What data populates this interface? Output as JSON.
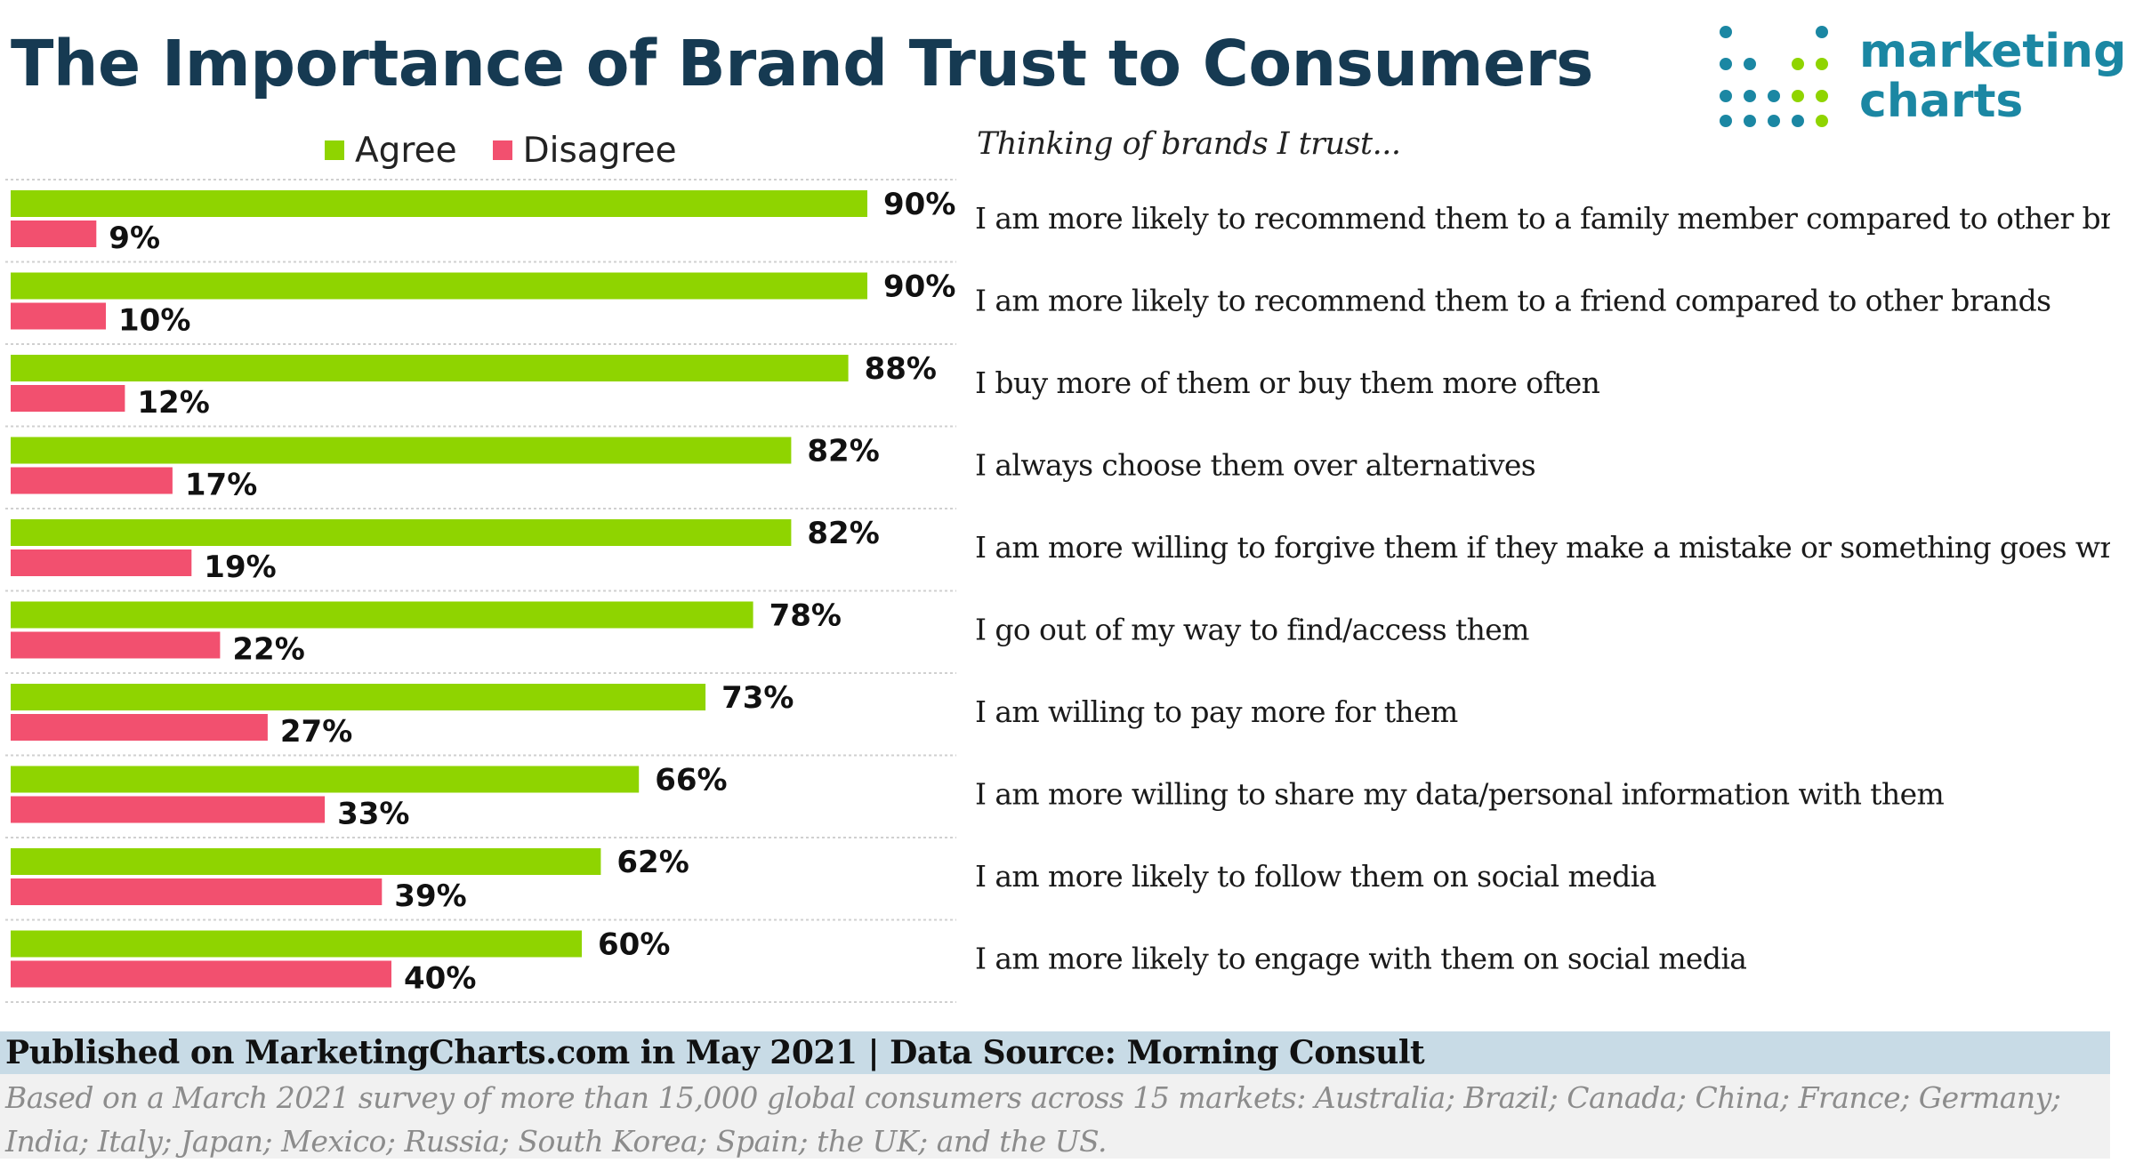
{
  "title": "The Importance of Brand Trust to Consumers",
  "logo": {
    "line1": "marketing",
    "line2": "charts"
  },
  "subhead": "Thinking of brands I trust...",
  "colors": {
    "agree": "#8fd400",
    "disagree": "#f2506f",
    "title": "#163a52",
    "logo": "#1b87a3"
  },
  "chart_data": {
    "type": "bar",
    "orientation": "horizontal",
    "legend": [
      "Agree",
      "Disagree"
    ],
    "legend_position": "top",
    "grid": false,
    "xlim": [
      0,
      100
    ],
    "categories": [
      "I am more likely to recommend them to a family member compared to other brands",
      "I am more likely to recommend them to a friend compared to other brands",
      "I buy more of them or buy them more often",
      "I always choose them over alternatives",
      "I am more willing to forgive them if they make a mistake or something goes wrong",
      "I go out of my way to find/access them",
      "I am willing to pay more for them",
      "I am more willing to share my data/personal information with them",
      "I am more likely to follow them on social media",
      "I am more likely to engage with them on social media"
    ],
    "series": [
      {
        "name": "Agree",
        "values": [
          90,
          90,
          88,
          82,
          82,
          78,
          73,
          66,
          62,
          60
        ],
        "labels": [
          "90%",
          "90%",
          "88%",
          "82%",
          "82%",
          "78%",
          "73%",
          "66%",
          "62%",
          "60%"
        ]
      },
      {
        "name": "Disagree",
        "values": [
          9,
          10,
          12,
          17,
          19,
          22,
          27,
          33,
          39,
          40
        ],
        "labels": [
          "9%",
          "10%",
          "12%",
          "17%",
          "19%",
          "22%",
          "27%",
          "33%",
          "39%",
          "40%"
        ]
      }
    ]
  },
  "footer": {
    "published": "Published on MarketingCharts.com in May 2021 | Data Source: Morning Consult",
    "note": "Based on a March 2021 survey of more than 15,000 global consumers across 15 markets: Australia; Brazil; Canada; China; France; Germany; India; Italy; Japan; Mexico; Russia; South Korea; Spain; the UK; and the US."
  }
}
